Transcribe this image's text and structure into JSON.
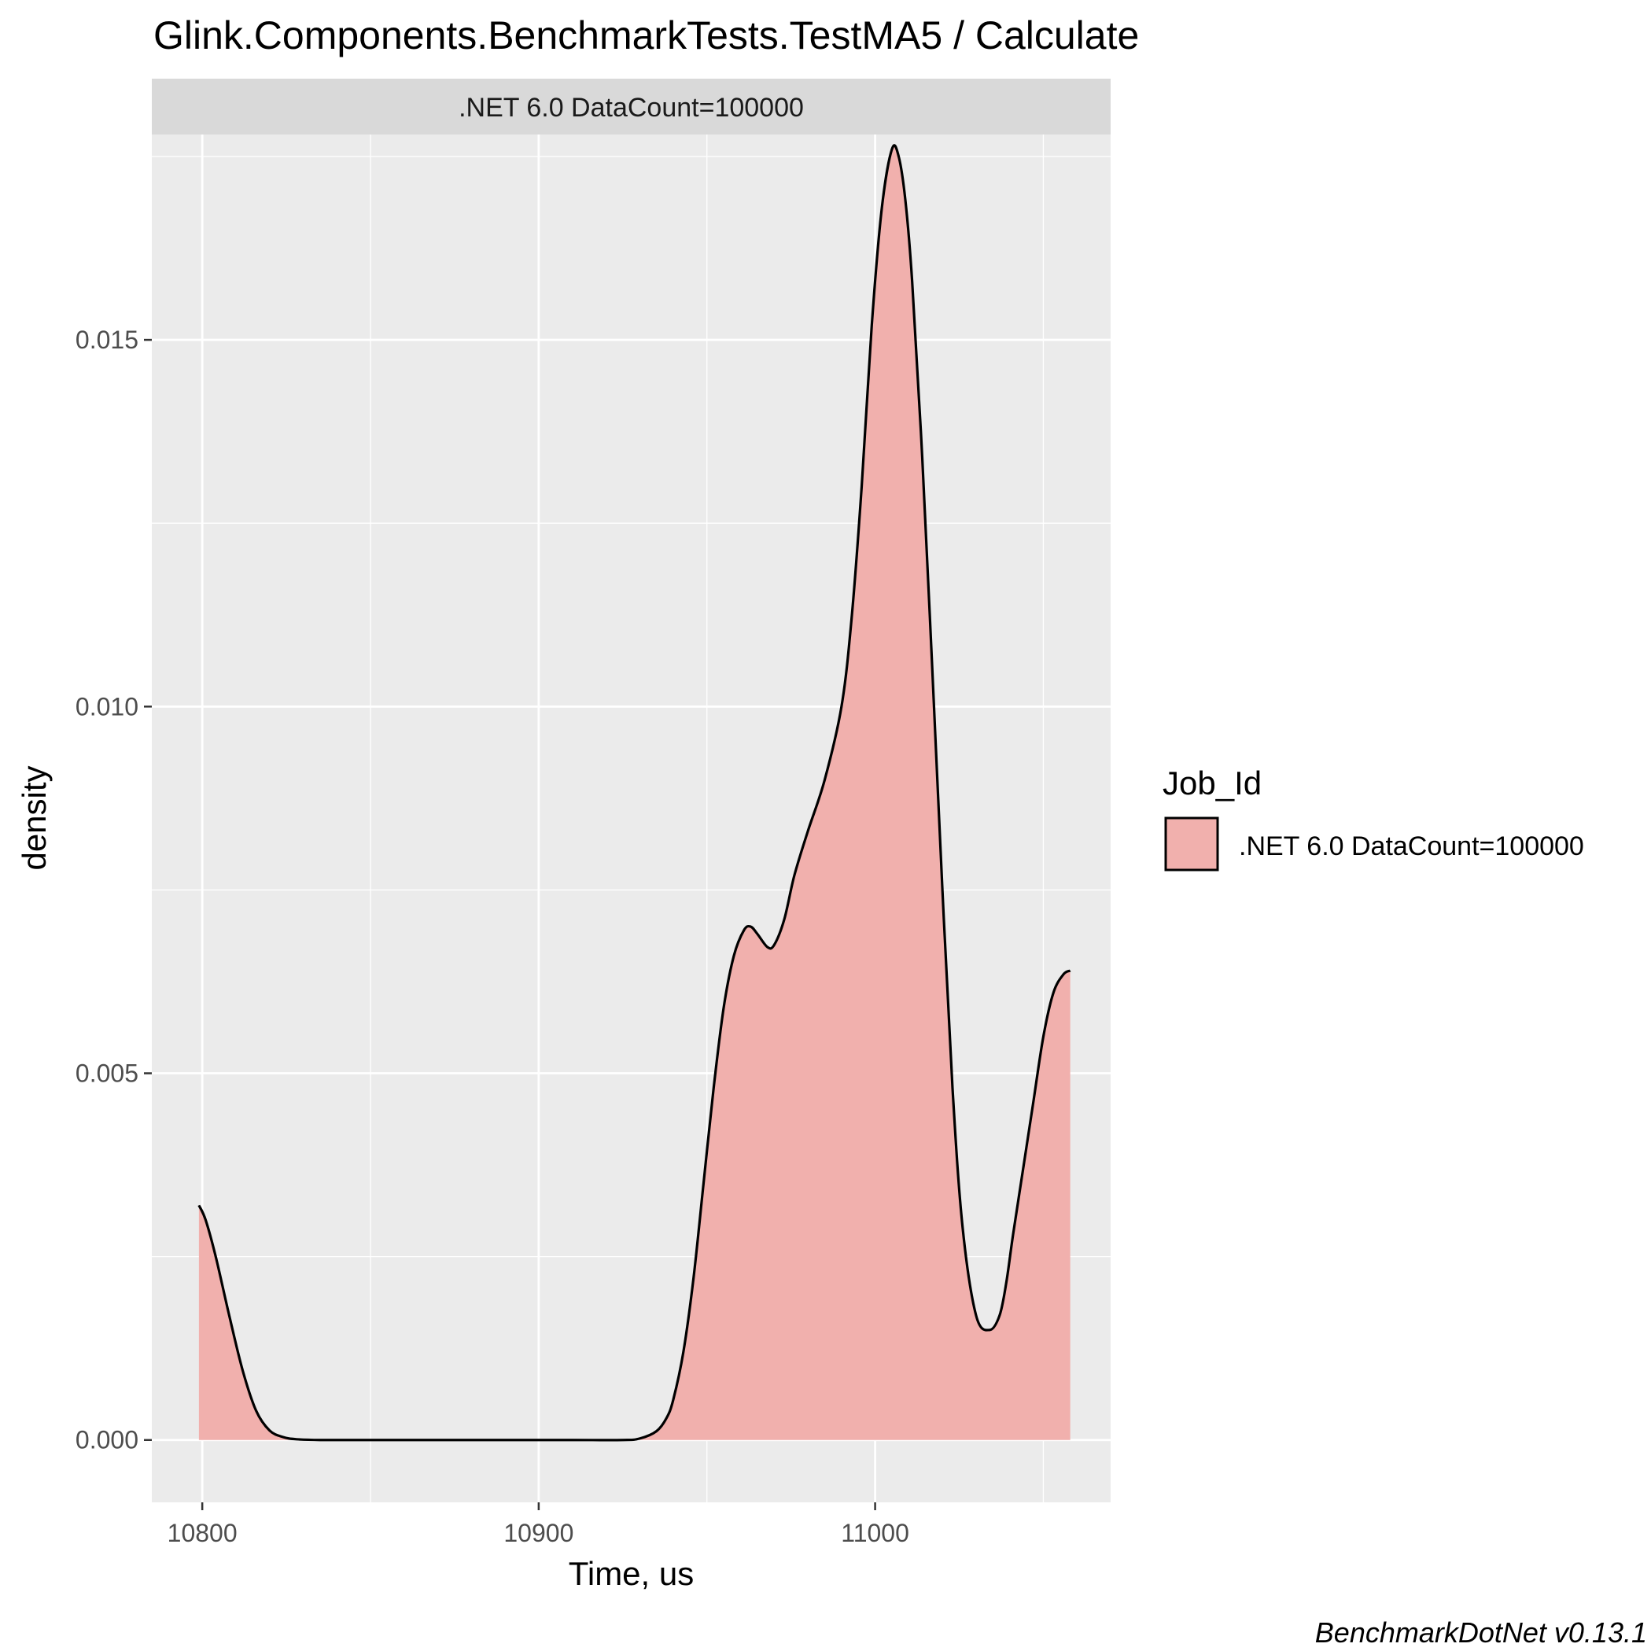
{
  "chart_data": {
    "type": "area",
    "title": "Glink.Components.BenchmarkTests.TestMA5 / Calculate",
    "facet_label": ".NET 6.0 DataCount=100000",
    "xlabel": "Time, us",
    "ylabel": "density",
    "xlim": [
      10785,
      11070
    ],
    "ylim": [
      -0.00085,
      0.0178
    ],
    "x_ticks": [
      10800,
      10900,
      11000
    ],
    "x_tick_labels": [
      "10800",
      "10900",
      "11000"
    ],
    "y_ticks": [
      0.0,
      0.005,
      0.01,
      0.015
    ],
    "y_tick_labels": [
      "0.000",
      "0.005",
      "0.010",
      "0.015"
    ],
    "grid": true,
    "legend": {
      "title": "Job_Id",
      "position": "right",
      "entries": [
        ".NET 6.0 DataCount=100000"
      ]
    },
    "caption": "BenchmarkDotNet v0.13.1",
    "series": [
      {
        "name": ".NET 6.0 DataCount=100000",
        "fill_color": "#f1b0ad",
        "line_color": "#000000",
        "x": [
          10799,
          10801,
          10804,
          10808,
          10812,
          10816,
          10820,
          10824,
          10828,
          10835,
          10850,
          10870,
          10890,
          10910,
          10925,
          10930,
          10935,
          10938,
          10940,
          10943,
          10946,
          10949,
          10952,
          10955,
          10958,
          10961,
          10963,
          10965,
          10968,
          10970,
          10973,
          10976,
          10980,
          10985,
          10990,
          10993,
          10996,
          10999,
          11002,
          11005,
          11007,
          11009,
          11011,
          11014,
          11017,
          11020,
          11023,
          11026,
          11030,
          11034,
          11037,
          11039,
          11041,
          11044,
          11047,
          11050,
          11053,
          11056,
          11058
        ],
        "y": [
          0.0032,
          0.003,
          0.0025,
          0.0017,
          0.00095,
          0.0004,
          0.00013,
          4e-05,
          1e-05,
          0.0,
          0.0,
          0.0,
          0.0,
          0.0,
          0.0,
          2e-05,
          0.00012,
          0.0003,
          0.00055,
          0.0012,
          0.0022,
          0.0035,
          0.0048,
          0.0059,
          0.0066,
          0.00695,
          0.007,
          0.0069,
          0.00672,
          0.00675,
          0.0071,
          0.0077,
          0.0083,
          0.009,
          0.01,
          0.0112,
          0.013,
          0.0152,
          0.0168,
          0.0176,
          0.0175,
          0.0169,
          0.0158,
          0.0134,
          0.0105,
          0.0075,
          0.0048,
          0.0029,
          0.0017,
          0.0015,
          0.0017,
          0.00215,
          0.0028,
          0.0037,
          0.0046,
          0.0055,
          0.0061,
          0.00635,
          0.0064
        ]
      }
    ]
  }
}
